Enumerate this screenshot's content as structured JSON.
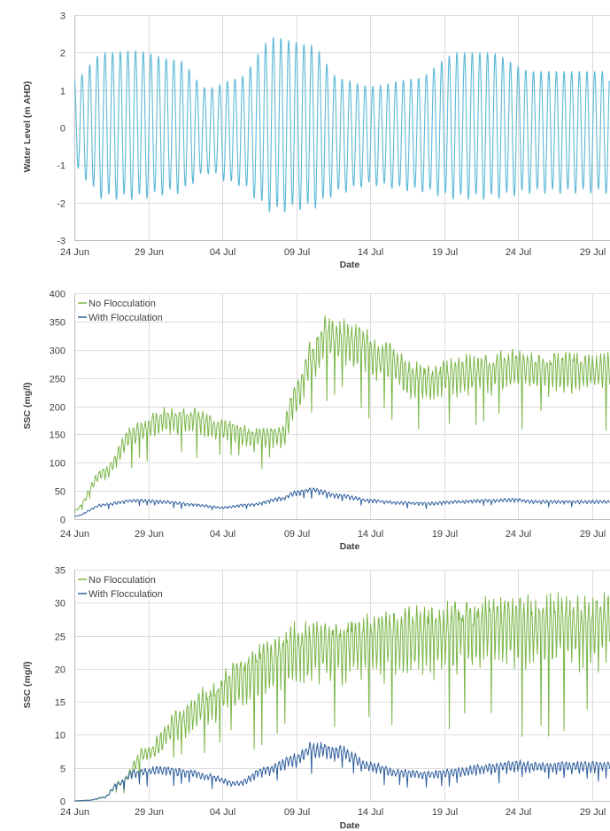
{
  "chart_data": [
    {
      "type": "line",
      "title": "",
      "xlabel": "Date",
      "ylabel": "Water Level (m AHD)",
      "xlim": [
        "24 Jun",
        "30 Jul"
      ],
      "ylim": [
        -3,
        3
      ],
      "y_ticks": [
        "3",
        "2",
        "1",
        "0",
        "-1",
        "-2",
        "-3"
      ],
      "x_ticks": [
        "24 Jun",
        "29 Jun",
        "04 Jul",
        "09 Jul",
        "14 Jul",
        "19 Jul",
        "24 Jul",
        "29 Jul"
      ],
      "grid": true,
      "legend": "none",
      "series": [
        {
          "color": "#5bb8d6",
          "description": "semi-diurnal tide, spring-neap envelope",
          "envelope_day": [
            0,
            2,
            4,
            7,
            9,
            11,
            13.5,
            16,
            18,
            20,
            23,
            26,
            28,
            31
          ],
          "envelope_high": [
            1.3,
            2.0,
            2.05,
            1.8,
            1.05,
            1.3,
            2.4,
            2.2,
            1.3,
            1.1,
            1.3,
            2.0,
            2.0,
            1.5
          ],
          "envelope_low": [
            -1.1,
            -1.85,
            -1.85,
            -1.7,
            -1.2,
            -1.5,
            -2.2,
            -2.1,
            -1.7,
            -1.5,
            -1.65,
            -1.85,
            -1.85,
            -1.7
          ]
        }
      ]
    },
    {
      "type": "line",
      "title": "",
      "xlabel": "Date",
      "ylabel": "SSC (mg/l)",
      "xlim": [
        "24 Jun",
        "30 Jul"
      ],
      "ylim": [
        0,
        400
      ],
      "y_ticks": [
        "400",
        "350",
        "300",
        "250",
        "200",
        "150",
        "100",
        "50",
        "0"
      ],
      "x_ticks": [
        "24 Jun",
        "29 Jun",
        "04 Jul",
        "09 Jul",
        "14 Jul",
        "19 Jul",
        "24 Jul",
        "29 Jul"
      ],
      "grid": true,
      "legend": "top-left",
      "series": [
        {
          "name": "No Flocculation",
          "color": "#7ab648",
          "day": [
            0,
            2,
            4,
            6,
            8,
            10,
            12,
            14,
            15,
            16,
            17,
            19,
            21,
            23,
            24,
            26,
            28,
            30,
            31
          ],
          "values": [
            15,
            80,
            145,
            170,
            170,
            155,
            140,
            145,
            210,
            270,
            310,
            300,
            270,
            240,
            235,
            250,
            255,
            260,
            255
          ]
        },
        {
          "name": "With Flocculation",
          "color": "#2f5f9e",
          "day": [
            0,
            2,
            4,
            6,
            8,
            10,
            12,
            14,
            15,
            16,
            18,
            20,
            22,
            24,
            26,
            28,
            30,
            31
          ],
          "values": [
            5,
            25,
            32,
            30,
            25,
            20,
            25,
            35,
            45,
            50,
            40,
            32,
            28,
            27,
            30,
            32,
            33,
            30
          ]
        }
      ]
    },
    {
      "type": "line",
      "title": "",
      "xlabel": "Date",
      "ylabel": "SSC (mg/l)",
      "xlim": [
        "24 Jun",
        "30 Jul"
      ],
      "ylim": [
        0,
        35
      ],
      "y_ticks": [
        "35",
        "30",
        "25",
        "20",
        "15",
        "10",
        "5",
        "0"
      ],
      "x_ticks": [
        "24 Jun",
        "29 Jun",
        "04 Jul",
        "09 Jul",
        "14 Jul",
        "19 Jul",
        "24 Jul",
        "29 Jul"
      ],
      "grid": true,
      "legend": "top-left",
      "series": [
        {
          "name": "No Flocculation",
          "color": "#7ab648",
          "day": [
            0,
            1,
            2,
            3,
            5,
            7,
            9,
            11,
            13,
            15,
            17,
            19,
            21,
            23,
            25,
            27,
            29,
            31
          ],
          "values": [
            0,
            0.1,
            0.5,
            2.5,
            7,
            11,
            14,
            17,
            19.5,
            21.5,
            22,
            22.5,
            23,
            23.5,
            24,
            24.5,
            25,
            25
          ]
        },
        {
          "name": "With Flocculation",
          "color": "#2f5f9e",
          "day": [
            0,
            1,
            2,
            3,
            4,
            6,
            8,
            9,
            11,
            13,
            15,
            16,
            18,
            20,
            22,
            24,
            26,
            28,
            30,
            31
          ],
          "values": [
            0,
            0.1,
            0.5,
            2.5,
            4,
            4.5,
            4,
            3.5,
            2.5,
            4.5,
            6,
            7.5,
            7,
            5,
            4,
            3.8,
            4.2,
            4.8,
            5.2,
            5
          ]
        }
      ]
    }
  ]
}
